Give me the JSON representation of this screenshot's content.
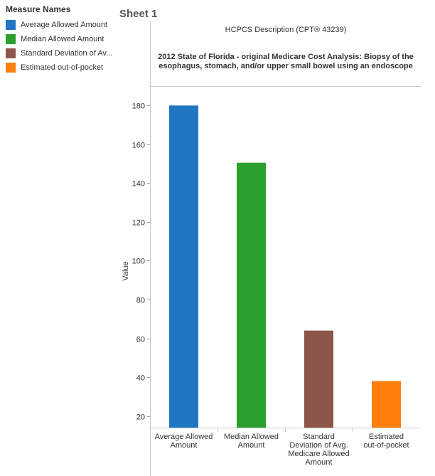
{
  "legend": {
    "title": "Measure Names",
    "items": [
      {
        "label": "Average Allowed Amount",
        "color": "#1f77c4"
      },
      {
        "label": "Median Allowed Amount",
        "color": "#2ca02c"
      },
      {
        "label": "Standard Deviation of Av...",
        "color": "#8c564b"
      },
      {
        "label": "Estimated out-of-pocket",
        "color": "#ff7f0e"
      }
    ]
  },
  "sheet_title": "Sheet 1",
  "header": {
    "label": "HCPCS Description (CPT® 43239)",
    "value_line1": "2012 State of Florida - original Medicare Cost Analysis:  Biopsy of the",
    "value_line2": "esophagus, stomach, and/or upper small bowel using an endoscope"
  },
  "chart_data": {
    "type": "bar",
    "ylabel": "Value",
    "ylim": [
      14,
      190
    ],
    "yticks": [
      20,
      40,
      60,
      80,
      100,
      120,
      140,
      160,
      180
    ],
    "categories": [
      [
        "Average Allowed",
        "Amount"
      ],
      [
        "Median Allowed",
        "Amount"
      ],
      [
        "Standard",
        "Deviation of Avg.",
        "Medicare Allowed",
        "Amount"
      ],
      [
        "Estimated",
        "out-of-pocket"
      ]
    ],
    "values": [
      180,
      150.5,
      64,
      38
    ],
    "colors": [
      "#1f77c4",
      "#2ca02c",
      "#8c564b",
      "#ff7f0e"
    ],
    "grid": false
  }
}
